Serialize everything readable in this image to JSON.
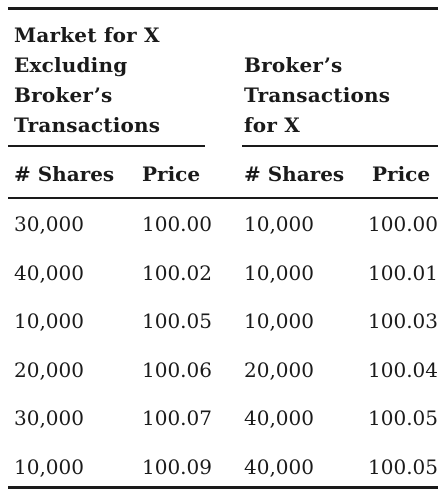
{
  "table": {
    "groups": {
      "left": [
        "Market for X",
        "Excluding",
        "Broker’s",
        "Transactions"
      ],
      "right": [
        "Broker’s",
        "Transactions",
        "for X"
      ]
    },
    "columns": [
      "# Shares",
      "Price",
      "# Shares",
      "Price"
    ],
    "rows": [
      [
        "30,000",
        "100.00",
        "10,000",
        "100.00"
      ],
      [
        "40,000",
        "100.02",
        "10,000",
        "100.01"
      ],
      [
        "10,000",
        "100.05",
        "10,000",
        "100.03"
      ],
      [
        "20,000",
        "100.06",
        "20,000",
        "100.04"
      ],
      [
        "30,000",
        "100.07",
        "40,000",
        "100.05"
      ],
      [
        "10,000",
        "100.09",
        "40,000",
        "100.05"
      ]
    ]
  }
}
